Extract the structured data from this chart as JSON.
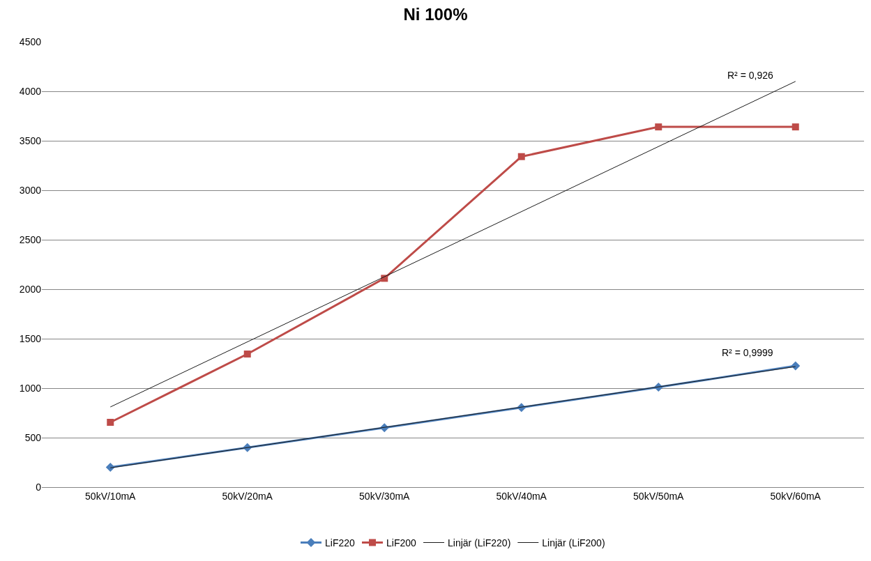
{
  "chart_data": {
    "type": "line",
    "title": "Ni 100%",
    "categories": [
      "50kV/10mA",
      "50kV/20mA",
      "50kV/30mA",
      "50kV/40mA",
      "50kV/50mA",
      "50kV/60mA"
    ],
    "series": [
      {
        "name": "LiF220",
        "color": "#4a7ebb",
        "marker": "diamond",
        "values": [
          200,
          400,
          600,
          805,
          1010,
          1225
        ]
      },
      {
        "name": "LiF200",
        "color": "#be4b48",
        "marker": "square",
        "values": [
          655,
          1345,
          2110,
          3340,
          3640,
          3640
        ]
      },
      {
        "name": "Linjär (LiF220)",
        "color": "#1a1a1a",
        "marker": "none",
        "x": [
          "50kV/10mA",
          "50kV/60mA"
        ],
        "values": [
          195,
          1218
        ]
      },
      {
        "name": "Linjär (LiF200)",
        "color": "#1a1a1a",
        "marker": "none",
        "x": [
          "50kV/10mA",
          "50kV/60mA"
        ],
        "values": [
          810,
          4100
        ]
      }
    ],
    "ylim": [
      0,
      4500
    ],
    "yticks": [
      0,
      500,
      1000,
      1500,
      2000,
      2500,
      3000,
      3500,
      4000,
      4500
    ],
    "grid": "y",
    "legend": "bottom",
    "annotations": [
      {
        "text": "R² = 0,926",
        "x": "50kV/60mA",
        "y": 4090
      },
      {
        "text": "R² = 0,9999",
        "x": "50kV/60mA",
        "y": 1290
      }
    ]
  }
}
